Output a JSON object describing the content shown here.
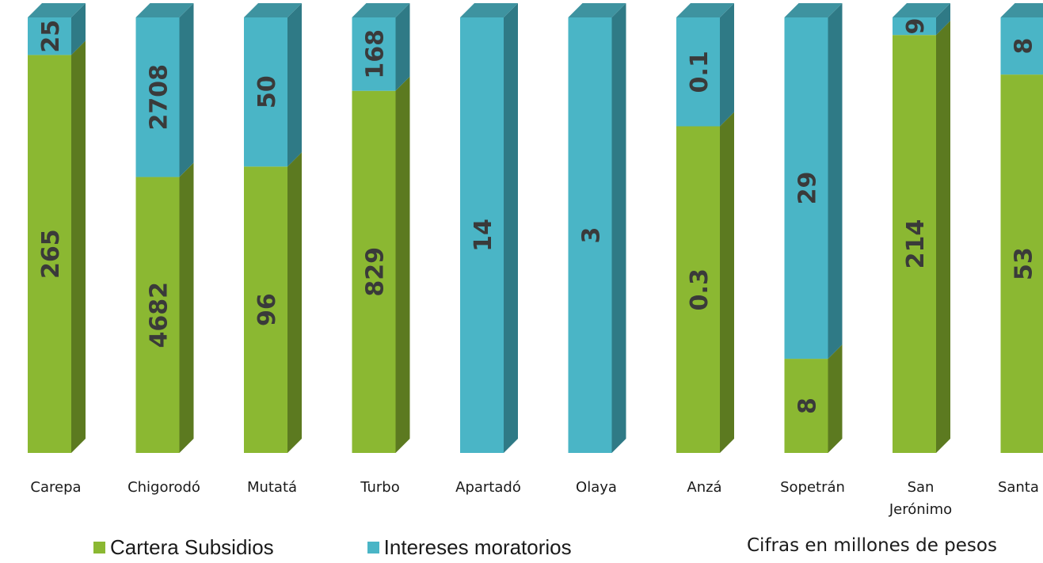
{
  "chart_data": {
    "type": "bar",
    "stacked": true,
    "three_d": true,
    "categories": [
      "Carepa",
      "Chigorodó",
      "Mutatá",
      "Turbo",
      "Apartadó",
      "Olaya",
      "Anzá",
      "Sopetrán",
      "San Jerónimo",
      "Santa Fé"
    ],
    "series": [
      {
        "name": "Cartera Subsidios",
        "color": "#8bb832",
        "values": [
          265,
          4682,
          96,
          829,
          0,
          0,
          0.3,
          8,
          214,
          53
        ],
        "labels": [
          "265",
          "4682",
          "96",
          "829",
          null,
          null,
          "0.3",
          "8",
          "214",
          "53"
        ]
      },
      {
        "name": "Intereses moratorios",
        "color": "#4ab5c6",
        "values": [
          25,
          2708,
          50,
          168,
          14,
          3,
          0.1,
          29,
          9,
          8
        ],
        "labels": [
          "25",
          "2708",
          "50",
          "168",
          "14",
          "3",
          "0.1",
          "29",
          "9",
          "8"
        ]
      }
    ],
    "percent_stacked": true,
    "legend_position": "bottom-left",
    "grid": false
  },
  "note": "Cifras en millones de pesos",
  "colors": {
    "green_front": "#8bb832",
    "green_side": "#5c7a20",
    "green_top": "#a6cf52",
    "blue_front": "#4ab5c6",
    "blue_side": "#2f7a86",
    "blue_top": "#3e93a0"
  }
}
